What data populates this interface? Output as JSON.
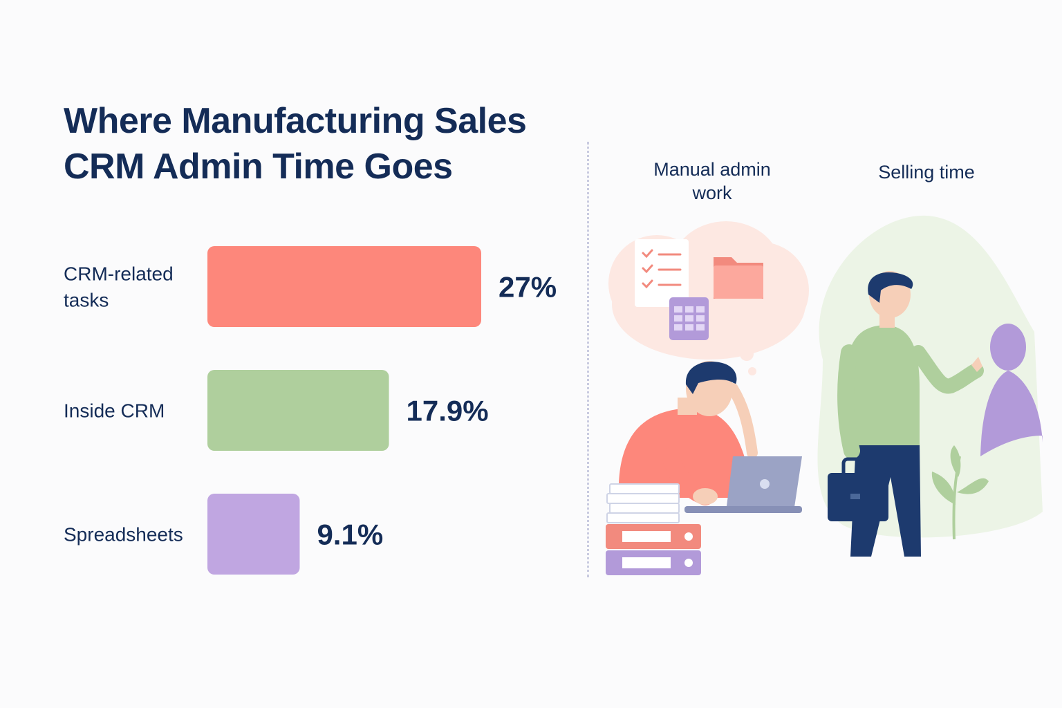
{
  "title_lines": [
    "Where Manufacturing Sales",
    "CRM Admin Time Goes"
  ],
  "chart_data": {
    "type": "bar",
    "orientation": "horizontal",
    "categories": [
      [
        "CRM-related",
        "tasks"
      ],
      [
        "Inside CRM"
      ],
      [
        "Spreadsheets"
      ]
    ],
    "values": [
      27,
      17.9,
      9.1
    ],
    "value_labels": [
      "27%",
      "17.9%",
      "9.1%"
    ],
    "colors": [
      "#fd877b",
      "#afcf9d",
      "#c0a6e1"
    ],
    "grid": false,
    "axes_visible": false
  },
  "illustration": {
    "left_label_lines": [
      "Manual admin",
      "work"
    ],
    "right_label": "Selling time",
    "left_icons": [
      "checklist-icon",
      "folder-icon",
      "spreadsheet-icon",
      "laptop-icon",
      "binder-icon",
      "paper-stack-icon"
    ],
    "right_icons": [
      "briefcase-icon",
      "plant-icon"
    ],
    "colors": {
      "navy": "#1d3a6e",
      "coral": "#fd877b",
      "green": "#afcf9d",
      "purple": "#b29ad9",
      "skin": "#f6cfb8"
    }
  }
}
